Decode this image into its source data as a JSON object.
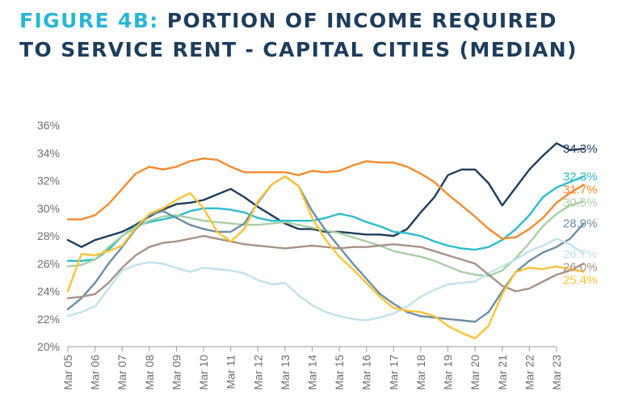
{
  "title": {
    "prefix": "FIGURE 4B:",
    "line1": "PORTION OF INCOME REQUIRED",
    "line2": "TO SERVICE RENT - CAPITAL CITIES (MEDIAN)"
  },
  "chart_data": {
    "type": "line",
    "title": "FIGURE 4B: PORTION OF INCOME REQUIRED TO SERVICE RENT - CAPITAL CITIES (MEDIAN)",
    "xlabel": "",
    "ylabel": "",
    "x_tick_labels": [
      "Mar 05",
      "Mar 06",
      "Mar 07",
      "Mar 08",
      "Mar 09",
      "Mar 10",
      "Mar 11",
      "Mar 12",
      "Mar 13",
      "Mar 14",
      "Mar 15",
      "Mar 16",
      "Mar 17",
      "Mar 18",
      "Mar 19",
      "Mar 20",
      "Mar 21",
      "Mar 22",
      "Mar 23"
    ],
    "ylim": [
      20,
      36
    ],
    "y_ticks": [
      20,
      22,
      24,
      26,
      28,
      30,
      32,
      34,
      36
    ],
    "y_tick_format": "%",
    "legend": "none",
    "grid": false,
    "series": [
      {
        "color": "#1d3d5c",
        "end_label": "34.3%",
        "points": [
          [
            0,
            27.7
          ],
          [
            0.5,
            27.2
          ],
          [
            1,
            27.7
          ],
          [
            1.5,
            28.0
          ],
          [
            2,
            28.3
          ],
          [
            2.5,
            28.8
          ],
          [
            3,
            29.4
          ],
          [
            3.5,
            29.9
          ],
          [
            4,
            30.3
          ],
          [
            4.5,
            30.4
          ],
          [
            5,
            30.6
          ],
          [
            5.5,
            31.0
          ],
          [
            6,
            31.4
          ],
          [
            6.5,
            30.8
          ],
          [
            7,
            30.1
          ],
          [
            7.5,
            29.5
          ],
          [
            8,
            28.9
          ],
          [
            8.5,
            28.5
          ],
          [
            9,
            28.5
          ],
          [
            9.5,
            28.3
          ],
          [
            10,
            28.3
          ],
          [
            10.5,
            28.2
          ],
          [
            11,
            28.1
          ],
          [
            11.5,
            28.1
          ],
          [
            12,
            28.0
          ],
          [
            12.5,
            28.5
          ],
          [
            13,
            29.7
          ],
          [
            13.5,
            30.8
          ],
          [
            14,
            32.4
          ],
          [
            14.5,
            32.8
          ],
          [
            15,
            32.8
          ],
          [
            15.5,
            31.8
          ],
          [
            16,
            30.2
          ],
          [
            16.5,
            31.5
          ],
          [
            17,
            32.8
          ],
          [
            17.5,
            33.8
          ],
          [
            18,
            34.7
          ],
          [
            18.5,
            34.2
          ],
          [
            19,
            34.3
          ]
        ]
      },
      {
        "color": "#2dbccf",
        "end_label": "32.3%",
        "points": [
          [
            0,
            26.2
          ],
          [
            0.5,
            26.2
          ],
          [
            1,
            26.3
          ],
          [
            1.5,
            27.0
          ],
          [
            2,
            28.0
          ],
          [
            2.5,
            28.7
          ],
          [
            3,
            29.0
          ],
          [
            3.5,
            29.2
          ],
          [
            4,
            29.4
          ],
          [
            4.5,
            29.8
          ],
          [
            5,
            30.0
          ],
          [
            5.5,
            30.0
          ],
          [
            6,
            29.9
          ],
          [
            6.5,
            29.7
          ],
          [
            7,
            29.3
          ],
          [
            7.5,
            29.1
          ],
          [
            8,
            29.1
          ],
          [
            8.5,
            29.1
          ],
          [
            9,
            29.1
          ],
          [
            9.5,
            29.3
          ],
          [
            10,
            29.6
          ],
          [
            10.5,
            29.4
          ],
          [
            11,
            29.0
          ],
          [
            11.5,
            28.7
          ],
          [
            12,
            28.3
          ],
          [
            12.5,
            28.2
          ],
          [
            13,
            28.0
          ],
          [
            13.5,
            27.6
          ],
          [
            14,
            27.3
          ],
          [
            14.5,
            27.1
          ],
          [
            15,
            27.0
          ],
          [
            15.5,
            27.2
          ],
          [
            16,
            27.7
          ],
          [
            16.5,
            28.5
          ],
          [
            17,
            29.5
          ],
          [
            17.5,
            30.8
          ],
          [
            18,
            31.5
          ],
          [
            18.5,
            31.9
          ],
          [
            19,
            32.3
          ]
        ]
      },
      {
        "color": "#f58a2f",
        "end_label": "31.7%",
        "points": [
          [
            0,
            29.2
          ],
          [
            0.5,
            29.2
          ],
          [
            1,
            29.5
          ],
          [
            1.5,
            30.3
          ],
          [
            2,
            31.4
          ],
          [
            2.5,
            32.5
          ],
          [
            3,
            33.0
          ],
          [
            3.5,
            32.8
          ],
          [
            4,
            33.0
          ],
          [
            4.5,
            33.4
          ],
          [
            5,
            33.6
          ],
          [
            5.5,
            33.5
          ],
          [
            6,
            33.0
          ],
          [
            6.5,
            32.6
          ],
          [
            7,
            32.6
          ],
          [
            7.5,
            32.6
          ],
          [
            8,
            32.6
          ],
          [
            8.5,
            32.4
          ],
          [
            9,
            32.7
          ],
          [
            9.5,
            32.6
          ],
          [
            10,
            32.7
          ],
          [
            10.5,
            33.1
          ],
          [
            11,
            33.4
          ],
          [
            11.5,
            33.3
          ],
          [
            12,
            33.3
          ],
          [
            12.5,
            33.0
          ],
          [
            13,
            32.5
          ],
          [
            13.5,
            31.9
          ],
          [
            14,
            31.0
          ],
          [
            14.5,
            30.2
          ],
          [
            15,
            29.4
          ],
          [
            15.5,
            28.5
          ],
          [
            16,
            27.8
          ],
          [
            16.5,
            27.9
          ],
          [
            17,
            28.5
          ],
          [
            17.5,
            29.3
          ],
          [
            18,
            30.4
          ],
          [
            18.5,
            31.1
          ],
          [
            19,
            31.7
          ]
        ]
      },
      {
        "color": "#a8cfa3",
        "end_label": "30.5%",
        "points": [
          [
            0,
            25.8
          ],
          [
            0.5,
            25.9
          ],
          [
            1,
            26.3
          ],
          [
            1.5,
            27.2
          ],
          [
            2,
            28.0
          ],
          [
            2.5,
            28.6
          ],
          [
            3,
            29.1
          ],
          [
            3.5,
            29.4
          ],
          [
            4,
            29.5
          ],
          [
            4.5,
            29.3
          ],
          [
            5,
            29.1
          ],
          [
            5.5,
            29.0
          ],
          [
            6,
            28.9
          ],
          [
            6.5,
            28.8
          ],
          [
            7,
            28.8
          ],
          [
            7.5,
            28.9
          ],
          [
            8,
            29.0
          ],
          [
            8.5,
            28.8
          ],
          [
            9,
            28.6
          ],
          [
            9.5,
            28.4
          ],
          [
            10,
            28.2
          ],
          [
            10.5,
            27.9
          ],
          [
            11,
            27.6
          ],
          [
            11.5,
            27.3
          ],
          [
            12,
            26.9
          ],
          [
            12.5,
            26.7
          ],
          [
            13,
            26.5
          ],
          [
            13.5,
            26.2
          ],
          [
            14,
            25.8
          ],
          [
            14.5,
            25.4
          ],
          [
            15,
            25.2
          ],
          [
            15.5,
            25.1
          ],
          [
            16,
            25.5
          ],
          [
            16.5,
            26.4
          ],
          [
            17,
            27.5
          ],
          [
            17.5,
            28.7
          ],
          [
            18,
            29.6
          ],
          [
            18.5,
            30.2
          ],
          [
            19,
            30.5
          ]
        ]
      },
      {
        "color": "#6b8ea6",
        "end_label": "28.9%",
        "points": [
          [
            0,
            22.7
          ],
          [
            0.5,
            23.5
          ],
          [
            1,
            24.6
          ],
          [
            1.5,
            26.0
          ],
          [
            2,
            27.2
          ],
          [
            2.5,
            28.5
          ],
          [
            3,
            29.5
          ],
          [
            3.5,
            29.8
          ],
          [
            4,
            29.3
          ],
          [
            4.5,
            28.8
          ],
          [
            5,
            28.5
          ],
          [
            5.5,
            28.3
          ],
          [
            6,
            28.3
          ],
          [
            6.5,
            28.9
          ],
          [
            7,
            30.4
          ],
          [
            7.5,
            31.7
          ],
          [
            8,
            32.3
          ],
          [
            8.5,
            31.6
          ],
          [
            9,
            29.8
          ],
          [
            9.5,
            28.4
          ],
          [
            10,
            27.2
          ],
          [
            10.5,
            26.0
          ],
          [
            11,
            24.9
          ],
          [
            11.5,
            23.8
          ],
          [
            12,
            23.1
          ],
          [
            12.5,
            22.5
          ],
          [
            13,
            22.2
          ],
          [
            13.5,
            22.1
          ],
          [
            14,
            22.0
          ],
          [
            14.5,
            21.9
          ],
          [
            15,
            21.8
          ],
          [
            15.5,
            22.5
          ],
          [
            16,
            24.0
          ],
          [
            16.5,
            25.4
          ],
          [
            17,
            26.2
          ],
          [
            17.5,
            26.8
          ],
          [
            18,
            27.2
          ],
          [
            18.5,
            27.8
          ],
          [
            19,
            28.9
          ]
        ]
      },
      {
        "color": "#bfe2ec",
        "end_label": "26.7%",
        "points": [
          [
            0,
            22.2
          ],
          [
            0.5,
            22.5
          ],
          [
            1,
            22.9
          ],
          [
            1.5,
            24.2
          ],
          [
            2,
            25.5
          ],
          [
            2.5,
            25.9
          ],
          [
            3,
            26.1
          ],
          [
            3.5,
            26.0
          ],
          [
            4,
            25.7
          ],
          [
            4.5,
            25.4
          ],
          [
            5,
            25.7
          ],
          [
            5.5,
            25.6
          ],
          [
            6,
            25.5
          ],
          [
            6.5,
            25.3
          ],
          [
            7,
            24.8
          ],
          [
            7.5,
            24.5
          ],
          [
            8,
            24.6
          ],
          [
            8.5,
            23.7
          ],
          [
            9,
            23.0
          ],
          [
            9.5,
            22.5
          ],
          [
            10,
            22.2
          ],
          [
            10.5,
            22.0
          ],
          [
            11,
            21.9
          ],
          [
            11.5,
            22.1
          ],
          [
            12,
            22.4
          ],
          [
            12.5,
            22.9
          ],
          [
            13,
            23.6
          ],
          [
            13.5,
            24.1
          ],
          [
            14,
            24.5
          ],
          [
            14.5,
            24.6
          ],
          [
            15,
            24.7
          ],
          [
            15.5,
            25.3
          ],
          [
            16,
            25.8
          ],
          [
            16.5,
            26.3
          ],
          [
            17,
            26.9
          ],
          [
            17.5,
            27.3
          ],
          [
            18,
            27.8
          ],
          [
            18.5,
            27.4
          ],
          [
            19,
            26.7
          ]
        ]
      },
      {
        "color": "#a89286",
        "end_label": "26.0%",
        "points": [
          [
            0,
            23.5
          ],
          [
            0.5,
            23.6
          ],
          [
            1,
            23.8
          ],
          [
            1.5,
            24.6
          ],
          [
            2,
            25.7
          ],
          [
            2.5,
            26.6
          ],
          [
            3,
            27.2
          ],
          [
            3.5,
            27.5
          ],
          [
            4,
            27.6
          ],
          [
            4.5,
            27.8
          ],
          [
            5,
            28.0
          ],
          [
            5.5,
            27.8
          ],
          [
            6,
            27.6
          ],
          [
            6.5,
            27.4
          ],
          [
            7,
            27.3
          ],
          [
            7.5,
            27.2
          ],
          [
            8,
            27.1
          ],
          [
            8.5,
            27.2
          ],
          [
            9,
            27.3
          ],
          [
            9.5,
            27.2
          ],
          [
            10,
            27.1
          ],
          [
            10.5,
            27.2
          ],
          [
            11,
            27.2
          ],
          [
            11.5,
            27.3
          ],
          [
            12,
            27.4
          ],
          [
            12.5,
            27.3
          ],
          [
            13,
            27.2
          ],
          [
            13.5,
            26.9
          ],
          [
            14,
            26.6
          ],
          [
            14.5,
            26.3
          ],
          [
            15,
            26.0
          ],
          [
            15.5,
            25.2
          ],
          [
            16,
            24.4
          ],
          [
            16.5,
            24.0
          ],
          [
            17,
            24.2
          ],
          [
            17.5,
            24.7
          ],
          [
            18,
            25.2
          ],
          [
            18.5,
            25.5
          ],
          [
            19,
            26.0
          ]
        ]
      },
      {
        "color": "#fbc336",
        "end_label": "25.4%",
        "points": [
          [
            0,
            24.0
          ],
          [
            0.5,
            26.7
          ],
          [
            1,
            26.6
          ],
          [
            1.5,
            26.9
          ],
          [
            2,
            27.3
          ],
          [
            2.5,
            28.6
          ],
          [
            3,
            29.6
          ],
          [
            3.5,
            30.0
          ],
          [
            4,
            30.6
          ],
          [
            4.5,
            31.1
          ],
          [
            5,
            30.0
          ],
          [
            5.5,
            28.3
          ],
          [
            6,
            27.6
          ],
          [
            6.5,
            28.5
          ],
          [
            7,
            30.5
          ],
          [
            7.5,
            31.7
          ],
          [
            8,
            32.3
          ],
          [
            8.5,
            31.6
          ],
          [
            9,
            29.3
          ],
          [
            9.5,
            27.7
          ],
          [
            10,
            26.5
          ],
          [
            10.5,
            25.6
          ],
          [
            11,
            24.6
          ],
          [
            11.5,
            23.6
          ],
          [
            12,
            22.8
          ],
          [
            12.5,
            22.6
          ],
          [
            13,
            22.5
          ],
          [
            13.5,
            22.2
          ],
          [
            14,
            21.5
          ],
          [
            14.5,
            21.0
          ],
          [
            15,
            20.6
          ],
          [
            15.5,
            21.5
          ],
          [
            16,
            23.8
          ],
          [
            16.5,
            25.4
          ],
          [
            17,
            25.7
          ],
          [
            17.5,
            25.6
          ],
          [
            18,
            25.8
          ],
          [
            18.5,
            25.6
          ],
          [
            19,
            25.4
          ]
        ]
      }
    ]
  }
}
